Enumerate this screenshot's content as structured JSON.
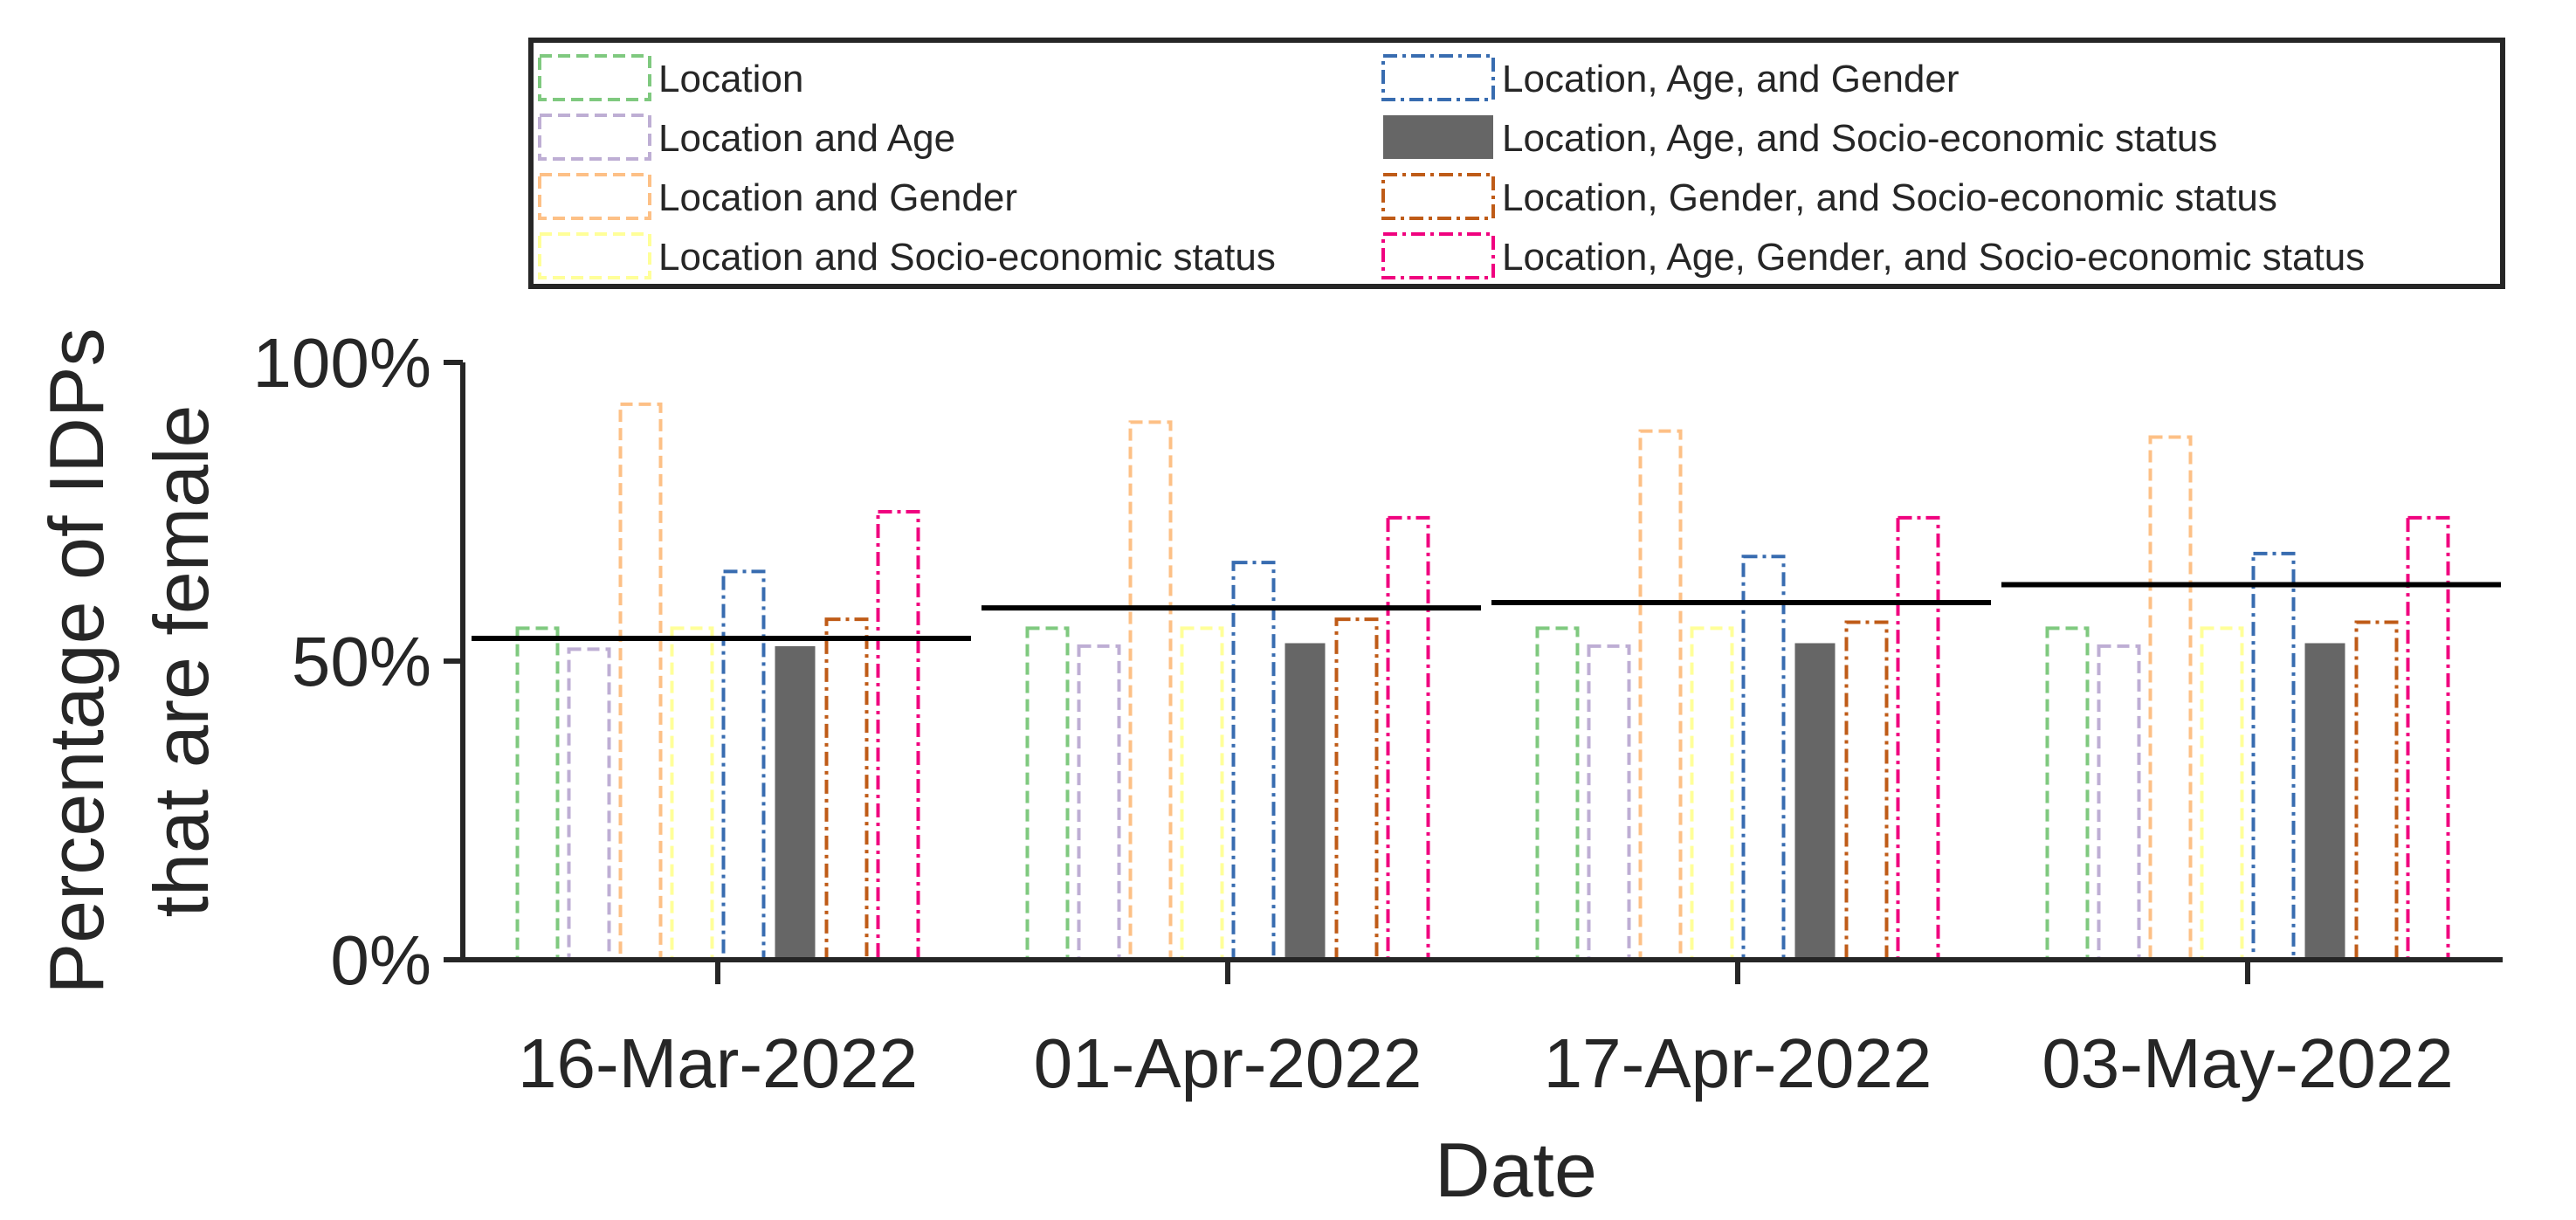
{
  "chart_data": {
    "type": "bar",
    "title": "",
    "xlabel": "Date",
    "ylabel": [
      "Percentage of IDPs",
      "that are female"
    ],
    "ylim": [
      0,
      100
    ],
    "yticks": [
      0,
      50,
      100
    ],
    "ytick_labels": [
      "0%",
      "50%",
      "100%"
    ],
    "categories": [
      "16-Mar-2022",
      "01-Apr-2022",
      "17-Apr-2022",
      "03-May-2022"
    ],
    "legend_position": "top",
    "grid": false,
    "series": [
      {
        "name": "Location",
        "color": "#7fc97f",
        "style": "dashed",
        "values": [
          55.5,
          55.5,
          55.5,
          55.5
        ]
      },
      {
        "name": "Location and Age",
        "color": "#beaed4",
        "style": "dashed",
        "values": [
          52.0,
          52.5,
          52.5,
          52.5
        ]
      },
      {
        "name": "Location and Gender",
        "color": "#fdc086",
        "style": "dashed",
        "values": [
          93.0,
          90.0,
          88.5,
          87.5
        ]
      },
      {
        "name": "Location and Socio-economic status",
        "color": "#ffff99",
        "style": "dashed",
        "values": [
          55.5,
          55.5,
          55.5,
          55.5
        ]
      },
      {
        "name": "Location, Age, and Gender",
        "color": "#386cb0",
        "style": "dashdot",
        "values": [
          65.0,
          66.5,
          67.5,
          68.0
        ]
      },
      {
        "name": "Location, Age, and Socio-economic status",
        "color": "#666666",
        "style": "solid",
        "values": [
          52.5,
          53.0,
          53.0,
          53.0
        ]
      },
      {
        "name": "Location, Gender, and Socio-economic status",
        "color": "#bf5b17",
        "style": "dashdot",
        "values": [
          57.0,
          57.0,
          56.5,
          56.5
        ]
      },
      {
        "name": "Location, Age, Gender, and Socio-economic status",
        "color": "#f0027f",
        "style": "dashdot",
        "values": [
          75.0,
          74.0,
          74.0,
          74.0
        ]
      }
    ],
    "reference_line": {
      "color": "#000000",
      "values": [
        53.8,
        58.9,
        59.8,
        62.8
      ]
    }
  }
}
